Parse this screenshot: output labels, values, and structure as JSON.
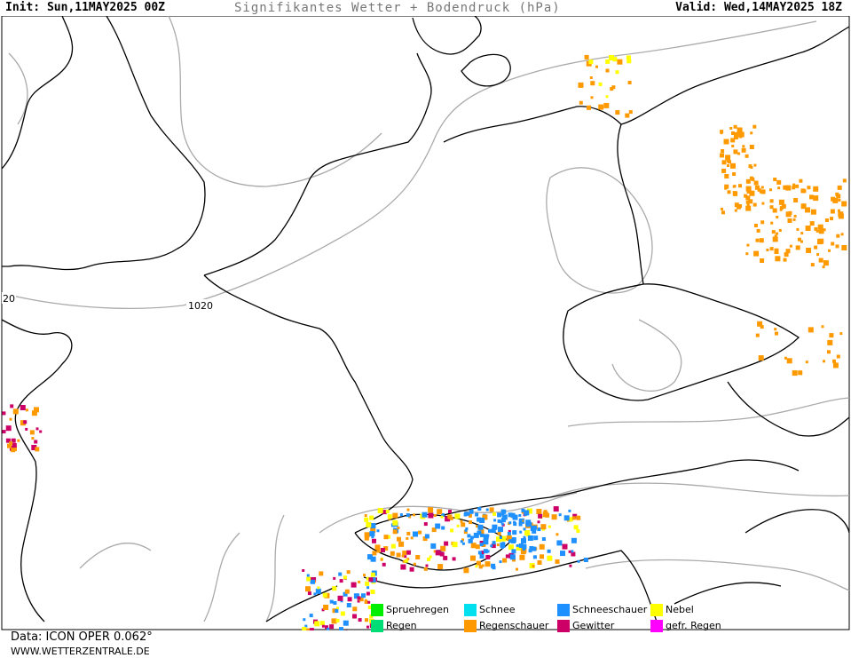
{
  "header": {
    "init": "Init: Sun,11MAY2025 00Z",
    "title": "Signifikantes Wetter + Bodendruck (hPa)",
    "valid": "Valid: Wed,14MAY2025 18Z"
  },
  "isobars": [
    {
      "label": "1020",
      "value": 1020
    },
    {
      "label": "20",
      "value": 1020
    }
  ],
  "legend": [
    {
      "label": "Spruehregen",
      "color": "#00ee00"
    },
    {
      "label": "Schnee",
      "color": "#00e0ee"
    },
    {
      "label": "Schneeschauer",
      "color": "#1e90ff"
    },
    {
      "label": "Nebel",
      "color": "#ffff00"
    },
    {
      "label": "Regen",
      "color": "#00dd77"
    },
    {
      "label": "Regenschauer",
      "color": "#ff9900"
    },
    {
      "label": "Gewitter",
      "color": "#cc0066"
    },
    {
      "label": "gefr. Regen",
      "color": "#ff00ff"
    }
  ],
  "footer": {
    "data": "Data: ICON OPER 0.062°",
    "site": "WWW.WETTERZENTRALE.DE"
  }
}
